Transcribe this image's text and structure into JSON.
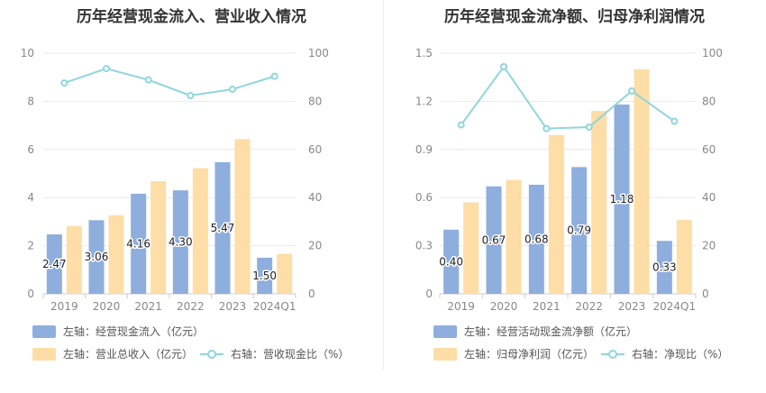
{
  "colors": {
    "bar_primary": "#8eaedd",
    "bar_secondary": "#fedda6",
    "line": "#8fd6dc",
    "grid": "#e8e8ee",
    "axis": "#cccccc"
  },
  "chart_data": [
    {
      "type": "bar+line",
      "title": "历年经营现金流入、营业收入情况",
      "categories": [
        "2019",
        "2020",
        "2021",
        "2022",
        "2023",
        "2024Q1"
      ],
      "left_axis": {
        "ticks": [
          "0",
          "2",
          "4",
          "6",
          "8",
          "10"
        ],
        "ylim": [
          0,
          10
        ]
      },
      "right_axis": {
        "ticks": [
          "0",
          "20",
          "40",
          "60",
          "80",
          "100"
        ],
        "ylim": [
          0,
          100
        ]
      },
      "series": [
        {
          "name": "左轴：经营现金流入（亿元）",
          "kind": "bar",
          "axis": "left",
          "color": "#8eaedd",
          "values": [
            2.47,
            3.06,
            4.16,
            4.3,
            5.47,
            1.5
          ],
          "labels": [
            "2.47",
            "3.06",
            "4.16",
            "4.30",
            "5.47",
            "1.50"
          ]
        },
        {
          "name": "左轴：营业总收入（亿元）",
          "kind": "bar",
          "axis": "left",
          "color": "#fedda6",
          "values": [
            2.82,
            3.27,
            4.68,
            5.22,
            6.43,
            1.66
          ]
        },
        {
          "name": "右轴：营收现金比（%）",
          "kind": "line",
          "axis": "right",
          "color": "#8fd6dc",
          "values": [
            87.6,
            93.6,
            88.9,
            82.4,
            85.0,
            90.4
          ]
        }
      ]
    },
    {
      "type": "bar+line",
      "title": "历年经营现金流净额、归母净利润情况",
      "categories": [
        "2019",
        "2020",
        "2021",
        "2022",
        "2023",
        "2024Q1"
      ],
      "left_axis": {
        "ticks": [
          "0",
          "0.3",
          "0.6",
          "0.9",
          "1.2",
          "1.5"
        ],
        "ylim": [
          0,
          1.5
        ]
      },
      "right_axis": {
        "ticks": [
          "0",
          "20",
          "40",
          "60",
          "80",
          "100"
        ],
        "ylim": [
          0,
          100
        ]
      },
      "series": [
        {
          "name": "左轴：经营活动现金流净额（亿元）",
          "kind": "bar",
          "axis": "left",
          "color": "#8eaedd",
          "values": [
            0.4,
            0.67,
            0.68,
            0.79,
            1.18,
            0.33
          ],
          "labels": [
            "0.40",
            "0.67",
            "0.68",
            "0.79",
            "1.18",
            "0.33"
          ]
        },
        {
          "name": "左轴：归母净利润（亿元）",
          "kind": "bar",
          "axis": "left",
          "color": "#fedda6",
          "values": [
            0.57,
            0.71,
            0.99,
            1.14,
            1.4,
            0.46
          ]
        },
        {
          "name": "右轴：净现比（%）",
          "kind": "line",
          "axis": "right",
          "color": "#8fd6dc",
          "values": [
            70.2,
            94.4,
            68.7,
            69.3,
            84.3,
            71.7
          ]
        }
      ]
    }
  ]
}
